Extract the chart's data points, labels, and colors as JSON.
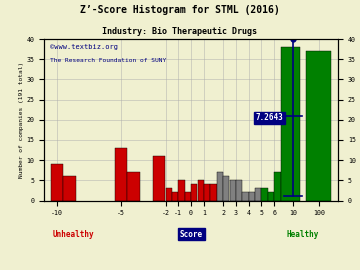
{
  "title": "Z’-Score Histogram for STML (2016)",
  "subtitle": "Industry: Bio Therapeutic Drugs",
  "watermark1": "©www.textbiz.org",
  "watermark2": "The Research Foundation of SUNY",
  "xlabel_score": "Score",
  "xlabel_unhealthy": "Unhealthy",
  "xlabel_healthy": "Healthy",
  "ylabel_left": "Number of companies (191 total)",
  "ylim": [
    0,
    40
  ],
  "bg_color": "#f0f0d0",
  "grid_color": "#aaaaaa",
  "title_color": "#000000",
  "subtitle_color": "#000000",
  "watermark1_color": "#000080",
  "watermark2_color": "#000080",
  "unhealthy_color": "#cc0000",
  "healthy_color": "#008000",
  "score_color": "#000080",
  "marker_color": "#000080",
  "marker_label": "7.2643",
  "bars": [
    [
      0,
      1.0,
      9,
      "#cc0000"
    ],
    [
      1,
      1.0,
      6,
      "#cc0000"
    ],
    [
      5,
      1.0,
      13,
      "#cc0000"
    ],
    [
      6,
      1.0,
      7,
      "#cc0000"
    ],
    [
      8,
      1.0,
      11,
      "#cc0000"
    ],
    [
      9,
      0.5,
      3,
      "#cc0000"
    ],
    [
      9.5,
      0.5,
      2,
      "#cc0000"
    ],
    [
      10,
      0.5,
      5,
      "#cc0000"
    ],
    [
      10.5,
      0.5,
      2,
      "#cc0000"
    ],
    [
      11,
      0.5,
      4,
      "#cc0000"
    ],
    [
      11.5,
      0.5,
      5,
      "#cc0000"
    ],
    [
      12,
      0.5,
      4,
      "#cc0000"
    ],
    [
      12.5,
      0.5,
      4,
      "#cc0000"
    ],
    [
      13,
      0.5,
      7,
      "#808080"
    ],
    [
      13.5,
      0.5,
      6,
      "#808080"
    ],
    [
      14,
      0.5,
      5,
      "#808080"
    ],
    [
      14.5,
      0.5,
      5,
      "#808080"
    ],
    [
      15,
      0.5,
      2,
      "#808080"
    ],
    [
      15.5,
      0.5,
      2,
      "#808080"
    ],
    [
      16,
      0.5,
      3,
      "#808080"
    ],
    [
      16.5,
      0.5,
      3,
      "#008000"
    ],
    [
      17,
      0.5,
      2,
      "#008000"
    ],
    [
      17.5,
      0.5,
      7,
      "#008000"
    ],
    [
      18,
      1.5,
      38,
      "#008000"
    ],
    [
      20,
      2.0,
      37,
      "#008000"
    ]
  ],
  "xtick_pos": [
    0.5,
    5.5,
    9.0,
    10.0,
    11.0,
    12.0,
    13.5,
    14.5,
    15.5,
    16.5,
    17.5,
    19.0,
    21.0
  ],
  "xtick_labels": [
    "-10",
    "-5",
    "-2",
    "-1",
    "0",
    "1",
    "2",
    "3",
    "4",
    "5",
    "6",
    "10",
    "100"
  ],
  "marker_x": 19.0,
  "marker_dot_y": 40,
  "marker_top_y": 40,
  "marker_mid_y": 21,
  "marker_bot_y": 1,
  "xlim": [
    -0.5,
    22.5
  ]
}
